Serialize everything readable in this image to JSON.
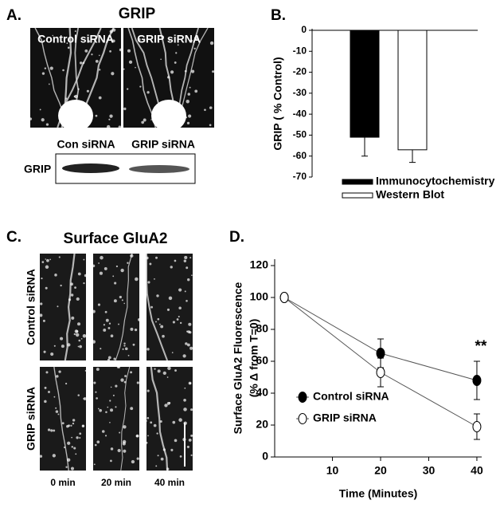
{
  "panel_labels": [
    "A.",
    "B.",
    "C.",
    "D."
  ],
  "panel_a": {
    "title": "GRIP",
    "image_labels": [
      "Control siRNA",
      "GRIP siRNA"
    ],
    "blot_lanes": [
      "Con siRNA",
      "GRIP siRNA"
    ],
    "blot_row": "GRIP"
  },
  "panel_c": {
    "title": "Surface GluA2",
    "row_labels": [
      "Control siRNA",
      "GRIP siRNA"
    ],
    "column_labels": [
      "0 min",
      "20 min",
      "40 min"
    ]
  },
  "chart_data": [
    {
      "type": "bar",
      "ylabel": "GRIP ( % Control)",
      "categories": [
        null
      ],
      "series": [
        {
          "name": "Immunocytochemistry",
          "color": "#000000",
          "values": [
            -51
          ],
          "errors": [
            9
          ]
        },
        {
          "name": "Western Blot",
          "color": "#ffffff",
          "values": [
            -57
          ],
          "errors": [
            6
          ]
        }
      ],
      "ylim": [
        -70,
        0
      ],
      "yticks": [
        0,
        -10,
        -20,
        -30,
        -40,
        -50,
        -60,
        -70
      ]
    },
    {
      "type": "line",
      "xlabel": "Time (Minutes)",
      "ylabel": [
        "Surface GluA2 Fluorescence",
        "(% Δ from T=0)"
      ],
      "x": [
        0,
        20,
        40
      ],
      "series": [
        {
          "name": "Control siRNA",
          "color": "#000000",
          "values": [
            100,
            65,
            48
          ],
          "errors": [
            0,
            9,
            12
          ]
        },
        {
          "name": "GRIP siRNA",
          "color": "#ffffff",
          "values": [
            100,
            53,
            19
          ],
          "errors": [
            0,
            9,
            8
          ]
        }
      ],
      "xlim": [
        -2,
        41
      ],
      "xticks": [
        10,
        20,
        30,
        40
      ],
      "ylim": [
        0,
        124
      ],
      "yticks": [
        0,
        20,
        40,
        60,
        80,
        100,
        120
      ],
      "annotation": "**"
    }
  ]
}
